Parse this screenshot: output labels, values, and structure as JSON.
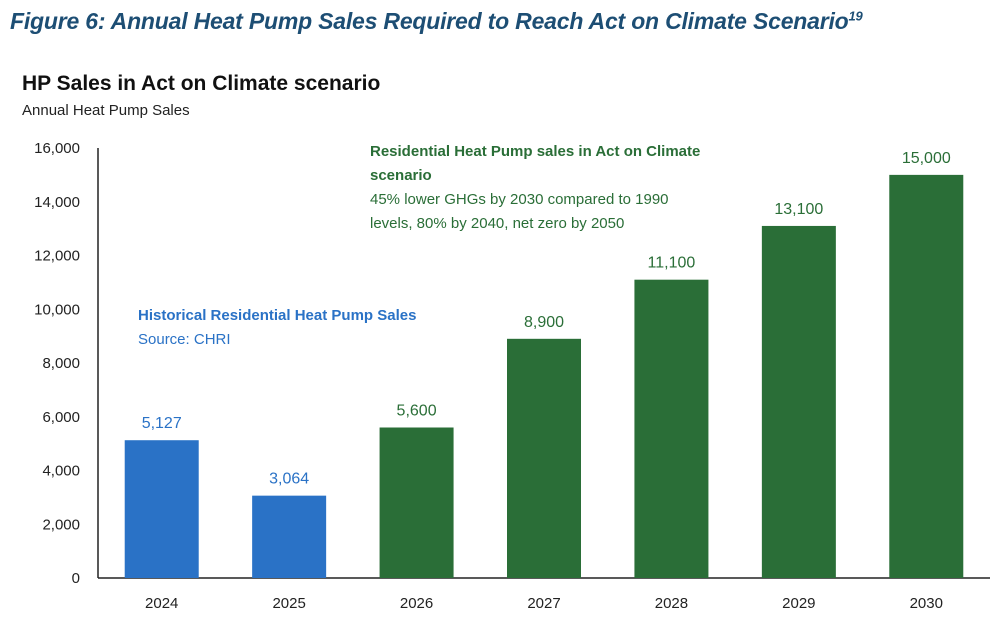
{
  "figure_title": "Figure 6: Annual Heat Pump Sales Required to Reach Act on Climate Scenario",
  "figure_footnote": "19",
  "chart_data": {
    "type": "bar",
    "title": "HP Sales in Act on Climate scenario",
    "subtitle": "Annual Heat Pump Sales",
    "xlabel": "",
    "ylabel": "",
    "categories": [
      "2024",
      "2025",
      "2026",
      "2027",
      "2028",
      "2029",
      "2030"
    ],
    "values": [
      5127,
      3064,
      5600,
      8900,
      11100,
      13100,
      15000
    ],
    "data_labels": [
      "5,127",
      "3,064",
      "5,600",
      "8,900",
      "11,100",
      "13,100",
      "15,000"
    ],
    "bar_groups": [
      "historical",
      "historical",
      "scenario",
      "scenario",
      "scenario",
      "scenario",
      "scenario"
    ],
    "ylim": [
      0,
      16000
    ],
    "yticks": [
      "0",
      "2,000",
      "4,000",
      "6,000",
      "8,000",
      "10,000",
      "12,000",
      "14,000",
      "16,000"
    ],
    "grid": false,
    "colors": {
      "historical": "#2a72c6",
      "scenario": "#2a6e37",
      "title": "#1d4e74"
    },
    "annotations": {
      "historical": {
        "title": "Historical Residential Heat Pump Sales",
        "note": "Source: CHRI"
      },
      "scenario": {
        "title": "Residential Heat Pump sales in Act on Climate scenario",
        "note": "45% lower GHGs by 2030 compared to 1990 levels, 80% by 2040, net zero by 2050"
      }
    }
  }
}
